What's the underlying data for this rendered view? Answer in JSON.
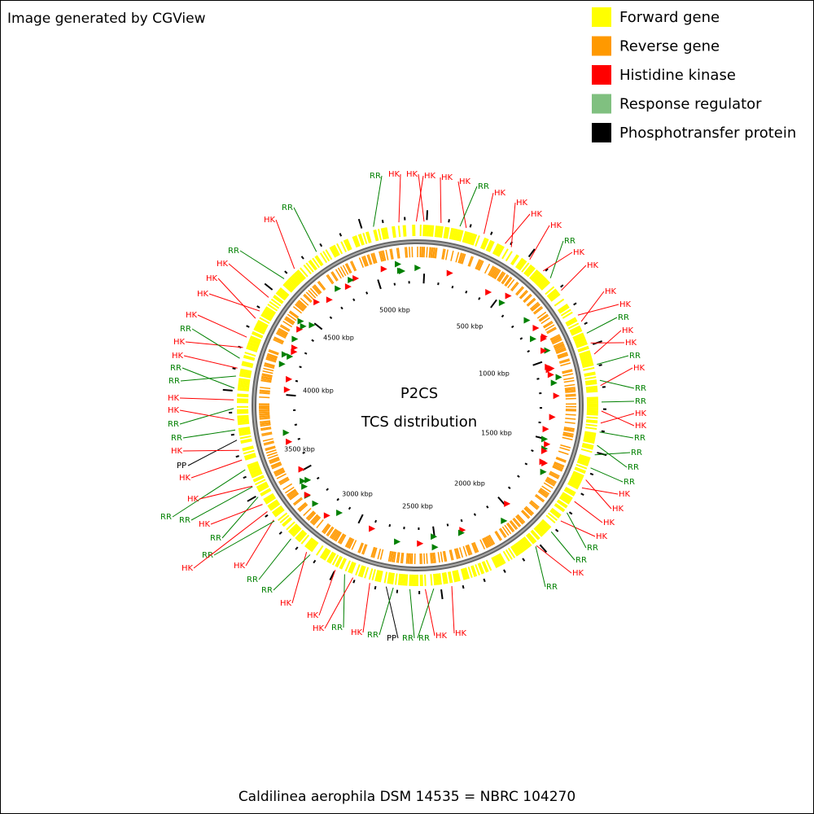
{
  "credit": "Image generated by CGView",
  "legend": [
    {
      "label": "Forward gene",
      "color": "#ffff00"
    },
    {
      "label": "Reverse gene",
      "color": "#ff9900"
    },
    {
      "label": "Histidine kinase",
      "color": "#ff0000"
    },
    {
      "label": "Response regulator",
      "color": "#80c080"
    },
    {
      "label": "Phosphotransfer protein",
      "color": "#000000"
    }
  ],
  "center": {
    "title": "P2CS",
    "subtitle": "TCS distribution"
  },
  "scale_labels": [
    "5000 kbp",
    "500 kbp",
    "1000 kbp",
    "1500 kbp",
    "2000 kbp",
    "2500 kbp",
    "3000 kbp",
    "3500 kbp",
    "4000 kbp",
    "4500 kbp"
  ],
  "feature_labels": [
    "RR",
    "HK",
    "HK",
    "HK",
    "HK",
    "HK",
    "RR",
    "HK",
    "HK",
    "HK",
    "HK",
    "RR",
    "HK",
    "HK",
    "HK",
    "HK",
    "RR",
    "HK",
    "HK",
    "RR",
    "HK",
    "RR",
    "RR",
    "HK",
    "HK",
    "RR",
    "RR",
    "RR",
    "RR",
    "HK",
    "HK",
    "HK",
    "HK",
    "RR",
    "RR",
    "HK",
    "RR",
    "HK",
    "HK",
    "RR",
    "RR",
    "PP",
    "RR",
    "HK",
    "RR",
    "HK",
    "HK",
    "HK",
    "RR",
    "RR",
    "HK",
    "RR",
    "HK",
    "RR",
    "HK",
    "RR",
    "RR",
    "HK",
    "HK",
    "PP",
    "HK",
    "RR",
    "RR",
    "HK",
    "HK",
    "RR",
    "RR",
    "HK",
    "HK",
    "RR",
    "HK",
    "HK",
    "HK",
    "HK",
    "RR",
    "HK",
    "RR"
  ],
  "footer": "Caldilinea aerophila DSM 14535 = NBRC 104270"
}
